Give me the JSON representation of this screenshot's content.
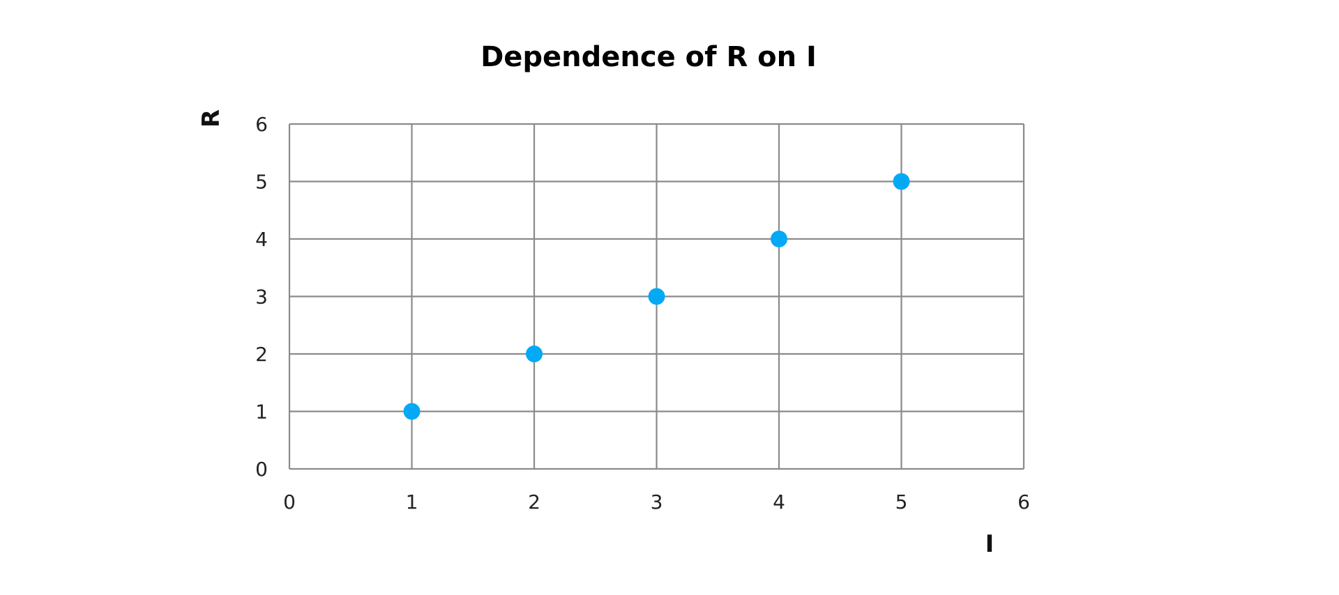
{
  "chart_data": {
    "type": "scatter",
    "title": "Dependence of R on I",
    "xlabel": "I",
    "ylabel": "R",
    "xlim": [
      0,
      6
    ],
    "ylim": [
      0,
      6
    ],
    "x_ticks": [
      0,
      1,
      2,
      3,
      4,
      5,
      6
    ],
    "y_ticks": [
      0,
      1,
      2,
      3,
      4,
      5,
      6
    ],
    "grid": true,
    "legend": false,
    "series": [
      {
        "x": [
          1,
          2,
          3,
          4,
          5
        ],
        "y": [
          1,
          2,
          3,
          4,
          5
        ],
        "color": "#03A9F4"
      }
    ],
    "colors": {
      "grid": "#8a8a8a",
      "marker": "#03A9F4"
    }
  }
}
